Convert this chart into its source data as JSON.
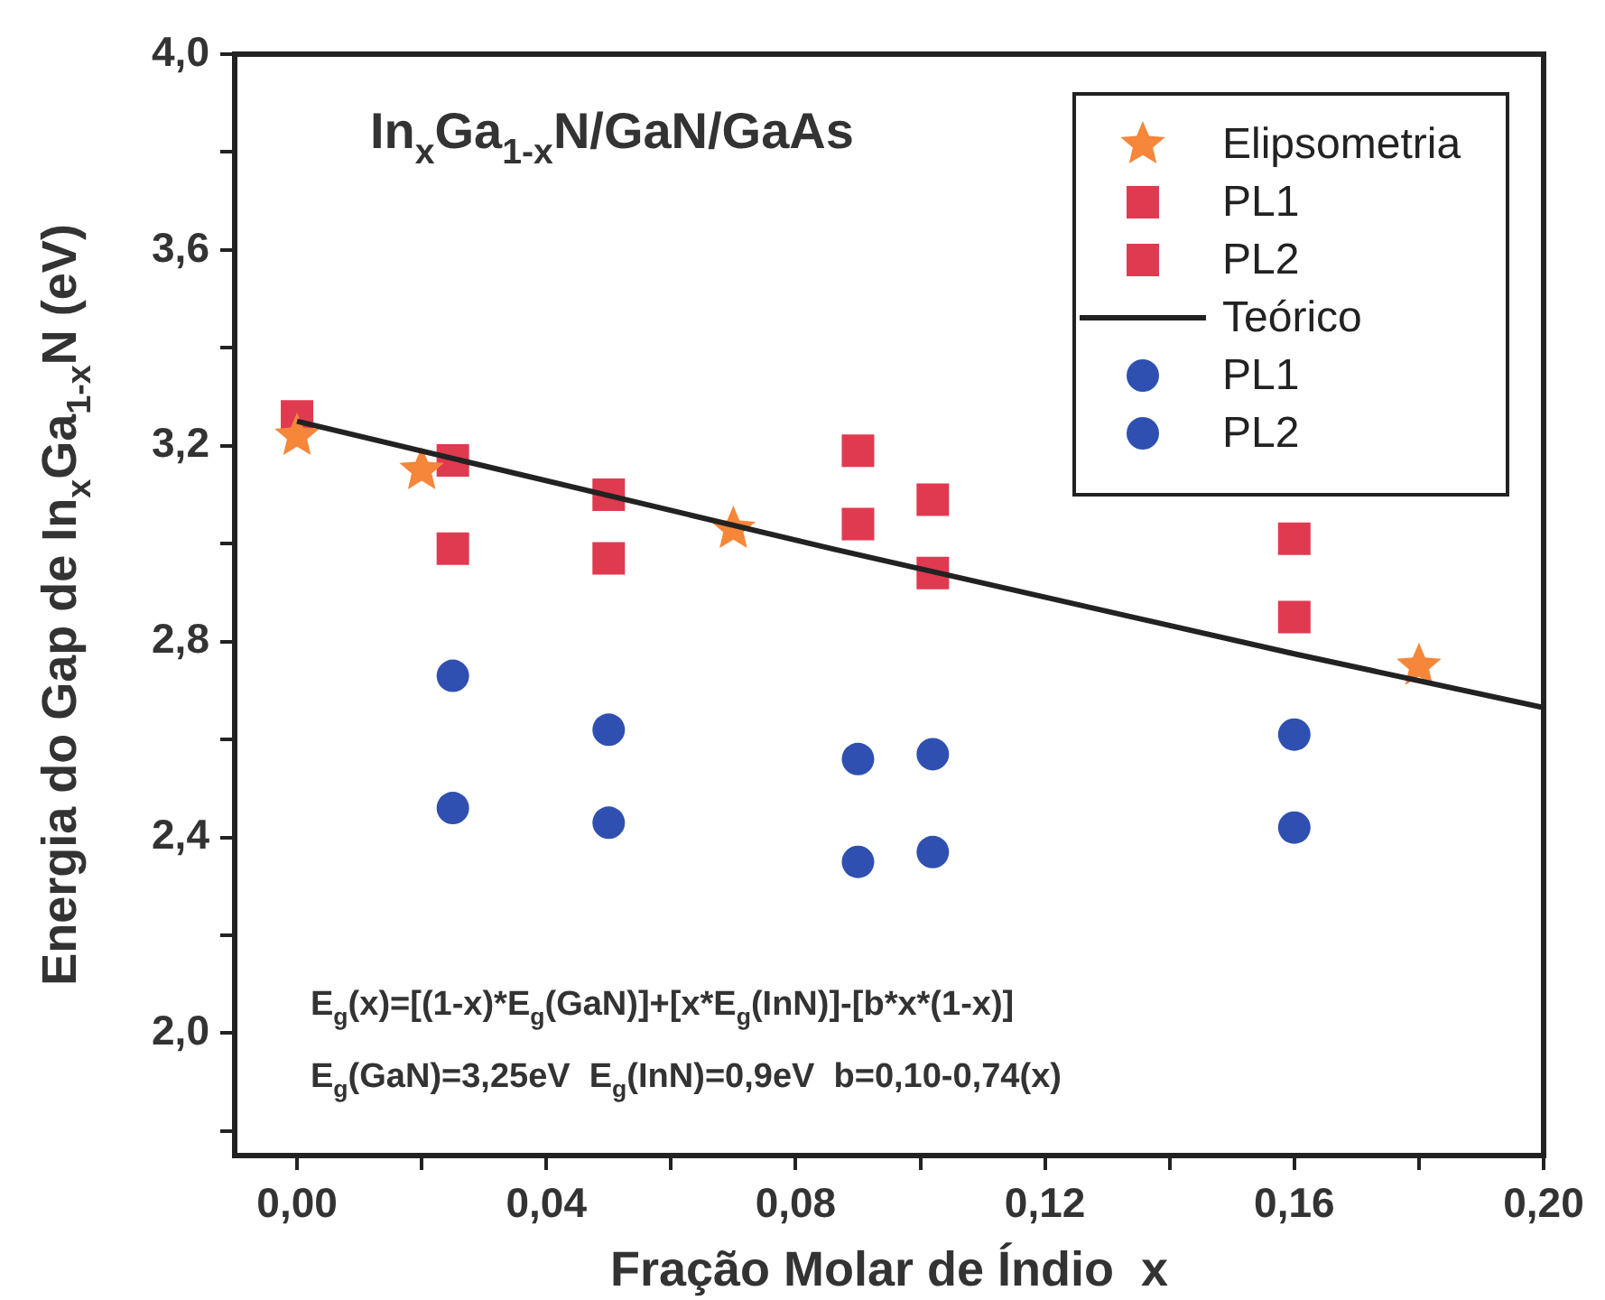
{
  "chart_data": {
    "type": "scatter",
    "title": "In$_{x}$Ga$_{1-x}$N/GaN/GaAs",
    "xlabel": "Fração Molar de Índio  x",
    "ylabel": "Energia do Gap de In$_{x}$Ga$_{1-x}$N (eV)",
    "annotations": [
      "E$_{g}$(x)=[(1-x)*E$_{g}$(GaN)]+[x*E$_{g}$(InN)]-[b*x*(1-x)]",
      "E$_{g}$(GaN)=3,25eV  E$_{g}$(InN)=0,9eV  b=0,10-0,74(x)"
    ],
    "xlim": [
      -0.01,
      0.2
    ],
    "ylim": [
      1.75,
      4.0
    ],
    "xticks": [
      {
        "value": 0,
        "label": "0,00"
      },
      {
        "value": 0.02,
        "label": null
      },
      {
        "value": 0.04,
        "label": "0,04"
      },
      {
        "value": 0.06,
        "label": null
      },
      {
        "value": 0.08,
        "label": "0,08"
      },
      {
        "value": 0.1,
        "label": null
      },
      {
        "value": 0.12,
        "label": "0,12"
      },
      {
        "value": 0.14,
        "label": null
      },
      {
        "value": 0.16,
        "label": "0,16"
      },
      {
        "value": 0.18,
        "label": null
      },
      {
        "value": 0.2,
        "label": "0,20"
      }
    ],
    "yticks": [
      {
        "value": 1.8,
        "label": null
      },
      {
        "value": 2.0,
        "label": "2,0"
      },
      {
        "value": 2.2,
        "label": null
      },
      {
        "value": 2.4,
        "label": "2,4"
      },
      {
        "value": 2.6,
        "label": null
      },
      {
        "value": 2.8,
        "label": "2,8"
      },
      {
        "value": 3.0,
        "label": null
      },
      {
        "value": 3.2,
        "label": "3,2"
      },
      {
        "value": 3.4,
        "label": null
      },
      {
        "value": 3.6,
        "label": "3,6"
      },
      {
        "value": 3.8,
        "label": null
      },
      {
        "value": 4.0,
        "label": "4,0"
      }
    ],
    "grid": false,
    "legend": "top right",
    "series": [
      {
        "name": "Elipsometria",
        "color": "#f5863a",
        "marker": "star",
        "x": [
          0,
          0.02,
          0.07,
          0.18
        ],
        "values": [
          3.22,
          3.15,
          3.03,
          2.75
        ]
      },
      {
        "name": "PL1",
        "color": "#e03a50",
        "marker": "square",
        "x": [
          0,
          0.025,
          0.05,
          0.09,
          0.102,
          0.16
        ],
        "values": [
          3.26,
          3.17,
          3.1,
          3.19,
          3.09,
          3.01
        ]
      },
      {
        "name": "PL2",
        "color": "#e03a50",
        "marker": "square",
        "x": [
          0.025,
          0.05,
          0.09,
          0.102,
          0.16
        ],
        "values": [
          2.99,
          2.97,
          3.04,
          2.94,
          2.85
        ]
      },
      {
        "name": "Teórico",
        "color": "#222222",
        "type": "line",
        "marker": "none",
        "line_style": "solid",
        "x": [
          0,
          0.0857,
          0.16,
          0.2
        ],
        "values": [
          3.25,
          2.99,
          2.775,
          2.665
        ]
      },
      {
        "name": "PL1",
        "color": "#2f50b0",
        "marker": "circle",
        "x": [
          0.025,
          0.05,
          0.09,
          0.102,
          0.16
        ],
        "values": [
          2.73,
          2.62,
          2.56,
          2.57,
          2.61
        ]
      },
      {
        "name": "PL2",
        "color": "#2f50b0",
        "marker": "circle",
        "x": [
          0.025,
          0.05,
          0.09,
          0.102,
          0.16
        ],
        "values": [
          2.46,
          2.43,
          2.35,
          2.37,
          2.42
        ]
      }
    ]
  }
}
